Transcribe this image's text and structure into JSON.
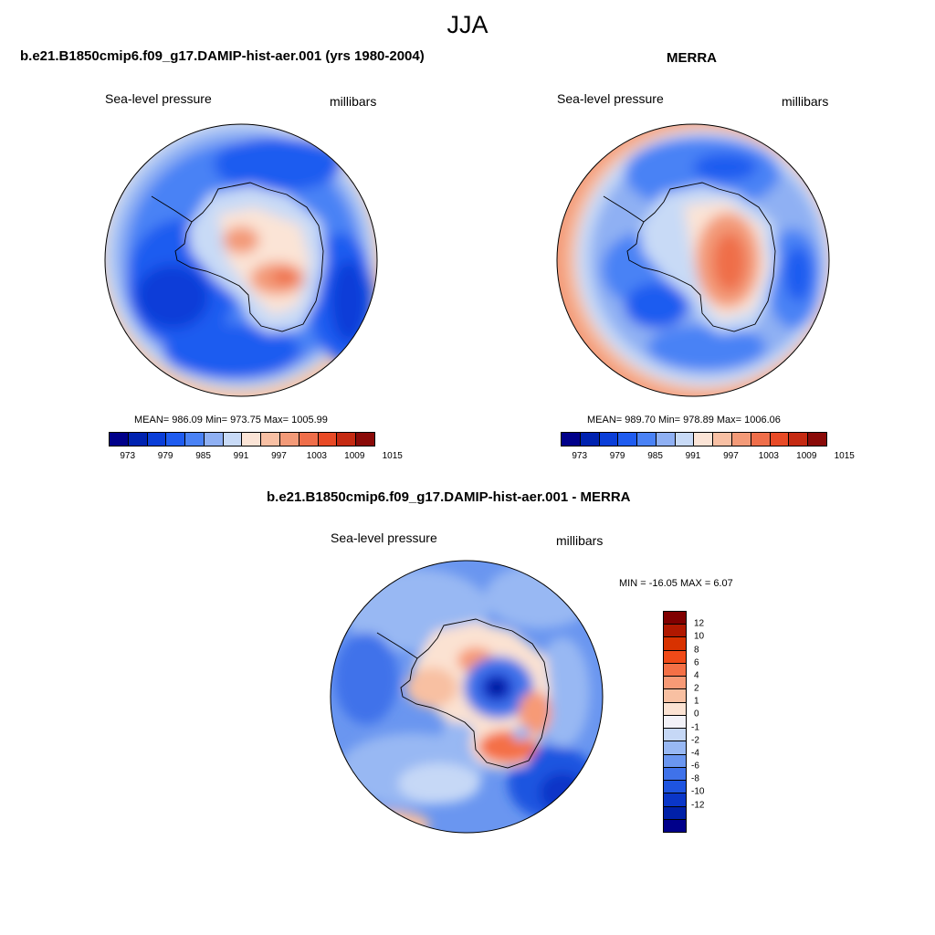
{
  "page_title": "JJA",
  "panels": [
    {
      "title": "b.e21.B1850cmip6.f09_g17.DAMIP-hist-aer.001 (yrs 1980-2004)",
      "variable": "Sea-level pressure",
      "units": "millibars",
      "stats": "MEAN= 986.09  Min= 973.75  Max= 1005.99"
    },
    {
      "title": "MERRA",
      "variable": "Sea-level pressure",
      "units": "millibars",
      "stats": "MEAN= 989.70  Min= 978.89  Max= 1006.06"
    },
    {
      "title": "b.e21.B1850cmip6.f09_g17.DAMIP-hist-aer.001 - MERRA",
      "variable": "Sea-level pressure",
      "units": "millibars",
      "stats": "MIN = -16.05 MAX =   6.07"
    }
  ],
  "abs_colorbar": {
    "colors": [
      "#00008a",
      "#0022b0",
      "#0a3ed8",
      "#1f5cf0",
      "#4a82f5",
      "#8fb0f3",
      "#c8daf6",
      "#fbe4d6",
      "#f8c0a4",
      "#f39a78",
      "#ef6e4a",
      "#e84a26",
      "#c52a12",
      "#8a0a08"
    ],
    "labels": [
      "973",
      "979",
      "985",
      "991",
      "997",
      "1003",
      "1009",
      "1015"
    ]
  },
  "diff_colorbar": {
    "colors_top_to_bottom": [
      "#800000",
      "#b01800",
      "#d83200",
      "#f04a18",
      "#f47046",
      "#f79a76",
      "#f8c0a2",
      "#fbe2d2",
      "#f2f2f8",
      "#c6d8f6",
      "#98b8f3",
      "#6a96f0",
      "#3f72ea",
      "#1e54e0",
      "#0a36c8",
      "#0020a8",
      "#00008a"
    ],
    "labels": [
      "12",
      "10",
      "8",
      "6",
      "4",
      "2",
      "1",
      "0",
      "-1",
      "-2",
      "-4",
      "-6",
      "-8",
      "-10",
      "-12"
    ]
  }
}
